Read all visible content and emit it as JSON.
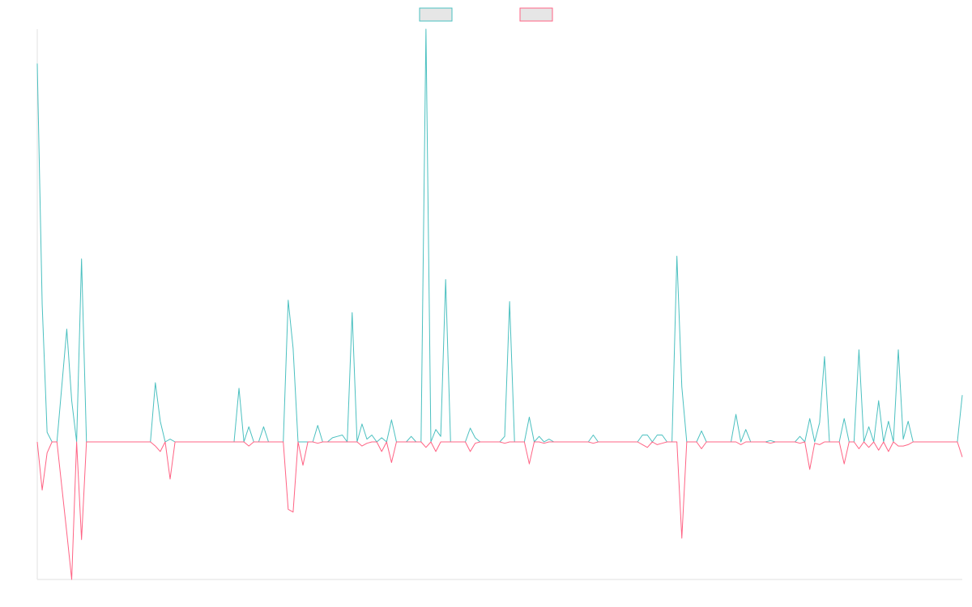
{
  "chart_data": {
    "type": "line",
    "title": "",
    "xlabel": "",
    "ylabel": "",
    "grid": false,
    "legend": "top-center",
    "ylim": [
      -100,
      300
    ],
    "x_count": 188,
    "series": [
      {
        "name": "",
        "color": "#4bc0c0",
        "fill": "#e6e6e6",
        "points": [
          [
            0,
            275
          ],
          [
            1,
            100
          ],
          [
            2,
            7
          ],
          [
            3,
            0
          ],
          [
            4,
            0
          ],
          [
            6,
            82
          ],
          [
            7,
            30
          ],
          [
            8,
            0
          ],
          [
            9,
            133
          ],
          [
            10,
            0
          ],
          [
            23,
            0
          ],
          [
            24,
            43
          ],
          [
            25,
            15
          ],
          [
            26,
            0
          ],
          [
            27,
            2
          ],
          [
            28,
            0
          ],
          [
            40,
            0
          ],
          [
            41,
            39
          ],
          [
            42,
            0
          ],
          [
            43,
            11
          ],
          [
            44,
            0
          ],
          [
            45,
            0
          ],
          [
            46,
            11
          ],
          [
            47,
            0
          ],
          [
            50,
            0
          ],
          [
            51,
            103
          ],
          [
            52,
            68
          ],
          [
            53,
            0
          ],
          [
            56,
            0
          ],
          [
            57,
            12
          ],
          [
            58,
            0
          ],
          [
            59,
            0
          ],
          [
            60,
            3
          ],
          [
            61,
            4
          ],
          [
            62,
            5
          ],
          [
            63,
            0
          ],
          [
            64,
            94
          ],
          [
            65,
            0
          ],
          [
            66,
            13
          ],
          [
            67,
            2
          ],
          [
            68,
            5
          ],
          [
            69,
            0
          ],
          [
            70,
            3
          ],
          [
            71,
            0
          ],
          [
            72,
            16
          ],
          [
            73,
            0
          ],
          [
            75,
            0
          ],
          [
            76,
            4
          ],
          [
            77,
            0
          ],
          [
            78,
            0
          ],
          [
            79,
            300
          ],
          [
            80,
            0
          ],
          [
            81,
            9
          ],
          [
            82,
            4
          ],
          [
            83,
            118
          ],
          [
            84,
            0
          ],
          [
            87,
            0
          ],
          [
            88,
            10
          ],
          [
            89,
            3
          ],
          [
            90,
            0
          ],
          [
            94,
            0
          ],
          [
            95,
            4
          ],
          [
            96,
            102
          ],
          [
            97,
            0
          ],
          [
            99,
            0
          ],
          [
            100,
            18
          ],
          [
            101,
            0
          ],
          [
            102,
            4
          ],
          [
            103,
            0
          ],
          [
            104,
            2
          ],
          [
            105,
            0
          ],
          [
            112,
            0
          ],
          [
            113,
            5
          ],
          [
            114,
            0
          ],
          [
            122,
            0
          ],
          [
            123,
            5
          ],
          [
            124,
            5
          ],
          [
            125,
            0
          ],
          [
            126,
            5
          ],
          [
            127,
            5
          ],
          [
            128,
            0
          ],
          [
            129,
            0
          ],
          [
            130,
            135
          ],
          [
            131,
            40
          ],
          [
            132,
            0
          ],
          [
            134,
            0
          ],
          [
            135,
            8
          ],
          [
            136,
            0
          ],
          [
            141,
            0
          ],
          [
            142,
            20
          ],
          [
            143,
            0
          ],
          [
            144,
            9
          ],
          [
            145,
            0
          ],
          [
            148,
            0
          ],
          [
            149,
            1
          ],
          [
            150,
            0
          ],
          [
            154,
            0
          ],
          [
            155,
            4
          ],
          [
            156,
            0
          ],
          [
            157,
            17
          ],
          [
            158,
            0
          ],
          [
            159,
            14
          ],
          [
            160,
            62
          ],
          [
            161,
            0
          ],
          [
            163,
            0
          ],
          [
            164,
            17
          ],
          [
            165,
            0
          ],
          [
            166,
            0
          ],
          [
            167,
            67
          ],
          [
            168,
            0
          ],
          [
            169,
            11
          ],
          [
            170,
            0
          ],
          [
            171,
            30
          ],
          [
            172,
            0
          ],
          [
            173,
            15
          ],
          [
            174,
            0
          ],
          [
            175,
            67
          ],
          [
            176,
            2
          ],
          [
            177,
            15
          ],
          [
            178,
            0
          ],
          [
            187,
            0
          ],
          [
            188,
            34
          ]
        ]
      },
      {
        "name": "",
        "color": "#ff6384",
        "fill": "#e6e6e6",
        "points": [
          [
            0,
            0
          ],
          [
            1,
            -35
          ],
          [
            2,
            -8
          ],
          [
            3,
            0
          ],
          [
            4,
            0
          ],
          [
            6,
            -66
          ],
          [
            7,
            -100
          ],
          [
            8,
            0
          ],
          [
            9,
            -71
          ],
          [
            10,
            0
          ],
          [
            23,
            0
          ],
          [
            24,
            -3
          ],
          [
            25,
            -7
          ],
          [
            26,
            0
          ],
          [
            27,
            -27
          ],
          [
            28,
            0
          ],
          [
            40,
            0
          ],
          [
            41,
            0
          ],
          [
            42,
            0
          ],
          [
            43,
            -3
          ],
          [
            44,
            0
          ],
          [
            45,
            0
          ],
          [
            46,
            0
          ],
          [
            47,
            0
          ],
          [
            50,
            0
          ],
          [
            51,
            -49
          ],
          [
            52,
            -51
          ],
          [
            53,
            0
          ],
          [
            54,
            -17
          ],
          [
            55,
            0
          ],
          [
            56,
            0
          ],
          [
            57,
            -1
          ],
          [
            58,
            0
          ],
          [
            59,
            0
          ],
          [
            60,
            0
          ],
          [
            61,
            0
          ],
          [
            62,
            0
          ],
          [
            63,
            0
          ],
          [
            64,
            0
          ],
          [
            65,
            0
          ],
          [
            66,
            -3
          ],
          [
            67,
            -1
          ],
          [
            68,
            0
          ],
          [
            69,
            0
          ],
          [
            70,
            -7
          ],
          [
            71,
            0
          ],
          [
            72,
            -15
          ],
          [
            73,
            0
          ],
          [
            75,
            0
          ],
          [
            76,
            0
          ],
          [
            77,
            0
          ],
          [
            78,
            0
          ],
          [
            79,
            -4
          ],
          [
            80,
            0
          ],
          [
            81,
            -7
          ],
          [
            82,
            0
          ],
          [
            83,
            0
          ],
          [
            84,
            0
          ],
          [
            87,
            0
          ],
          [
            88,
            -7
          ],
          [
            89,
            -1
          ],
          [
            90,
            0
          ],
          [
            94,
            0
          ],
          [
            95,
            -1
          ],
          [
            96,
            0
          ],
          [
            97,
            0
          ],
          [
            99,
            0
          ],
          [
            100,
            -16
          ],
          [
            101,
            0
          ],
          [
            102,
            0
          ],
          [
            103,
            -1
          ],
          [
            104,
            0
          ],
          [
            105,
            0
          ],
          [
            112,
            0
          ],
          [
            113,
            -1
          ],
          [
            114,
            0
          ],
          [
            122,
            0
          ],
          [
            123,
            -2
          ],
          [
            124,
            -4
          ],
          [
            125,
            0
          ],
          [
            126,
            -2
          ],
          [
            127,
            -1
          ],
          [
            128,
            0
          ],
          [
            129,
            0
          ],
          [
            130,
            0
          ],
          [
            131,
            -70
          ],
          [
            132,
            0
          ],
          [
            134,
            0
          ],
          [
            135,
            -5
          ],
          [
            136,
            0
          ],
          [
            141,
            0
          ],
          [
            142,
            0
          ],
          [
            143,
            -2
          ],
          [
            144,
            0
          ],
          [
            145,
            0
          ],
          [
            148,
            0
          ],
          [
            149,
            -1
          ],
          [
            150,
            0
          ],
          [
            154,
            0
          ],
          [
            155,
            -1
          ],
          [
            156,
            0
          ],
          [
            157,
            -20
          ],
          [
            158,
            -1
          ],
          [
            159,
            -2
          ],
          [
            160,
            0
          ],
          [
            161,
            0
          ],
          [
            163,
            0
          ],
          [
            164,
            -16
          ],
          [
            165,
            0
          ],
          [
            166,
            0
          ],
          [
            167,
            -5
          ],
          [
            168,
            0
          ],
          [
            169,
            -4
          ],
          [
            170,
            0
          ],
          [
            171,
            -6
          ],
          [
            172,
            0
          ],
          [
            173,
            -7
          ],
          [
            174,
            0
          ],
          [
            175,
            -3
          ],
          [
            176,
            -3
          ],
          [
            177,
            -2
          ],
          [
            178,
            0
          ],
          [
            187,
            0
          ],
          [
            188,
            -11
          ]
        ]
      }
    ]
  }
}
